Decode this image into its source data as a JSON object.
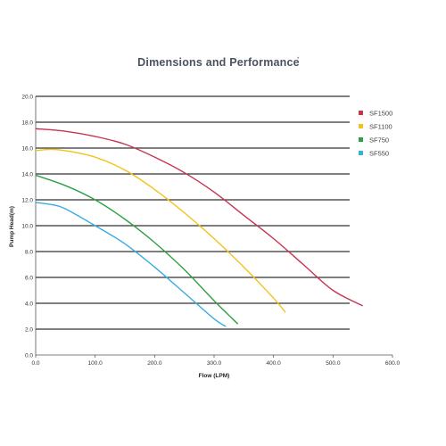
{
  "chart_data": {
    "type": "line",
    "title": "Dimensions and Performance",
    "title_mark": "*",
    "xlabel": "Flow (LPM)",
    "ylabel": "Pump Head(m)",
    "xlim": [
      0,
      600
    ],
    "ylim": [
      0,
      20
    ],
    "x_ticks": [
      "0.0",
      "100.0",
      "200.0",
      "300.0",
      "400.0",
      "500.0",
      "600.0"
    ],
    "y_ticks": [
      "0.0",
      "2.0",
      "4.0",
      "6.0",
      "8.0",
      "10.0",
      "12.0",
      "14.0",
      "16.0",
      "18.0",
      "20.0"
    ],
    "grid": "horizontal",
    "legend_position": "top-right",
    "series": [
      {
        "name": "SF1500",
        "color": "#c8334f",
        "points": [
          [
            0,
            17.5
          ],
          [
            50,
            17.3
          ],
          [
            100,
            16.9
          ],
          [
            150,
            16.3
          ],
          [
            200,
            15.3
          ],
          [
            250,
            14.1
          ],
          [
            300,
            12.6
          ],
          [
            350,
            10.8
          ],
          [
            400,
            9.0
          ],
          [
            450,
            7.0
          ],
          [
            500,
            5.0
          ],
          [
            550,
            3.8
          ]
        ]
      },
      {
        "name": "SF1100",
        "color": "#f2c21b",
        "points": [
          [
            0,
            15.8
          ],
          [
            25,
            15.9
          ],
          [
            50,
            15.8
          ],
          [
            100,
            15.3
          ],
          [
            150,
            14.3
          ],
          [
            200,
            12.8
          ],
          [
            250,
            11.0
          ],
          [
            300,
            9.0
          ],
          [
            350,
            6.8
          ],
          [
            400,
            4.4
          ],
          [
            420,
            3.3
          ]
        ]
      },
      {
        "name": "SF750",
        "color": "#2ea043",
        "points": [
          [
            0,
            13.9
          ],
          [
            50,
            13.1
          ],
          [
            100,
            12.0
          ],
          [
            150,
            10.5
          ],
          [
            200,
            8.7
          ],
          [
            250,
            6.6
          ],
          [
            300,
            4.2
          ],
          [
            340,
            2.4
          ]
        ]
      },
      {
        "name": "SF550",
        "color": "#35aee3",
        "points": [
          [
            0,
            11.8
          ],
          [
            30,
            11.6
          ],
          [
            50,
            11.3
          ],
          [
            100,
            10.0
          ],
          [
            150,
            8.6
          ],
          [
            200,
            6.8
          ],
          [
            250,
            4.8
          ],
          [
            300,
            2.8
          ],
          [
            320,
            2.2
          ]
        ]
      }
    ]
  }
}
